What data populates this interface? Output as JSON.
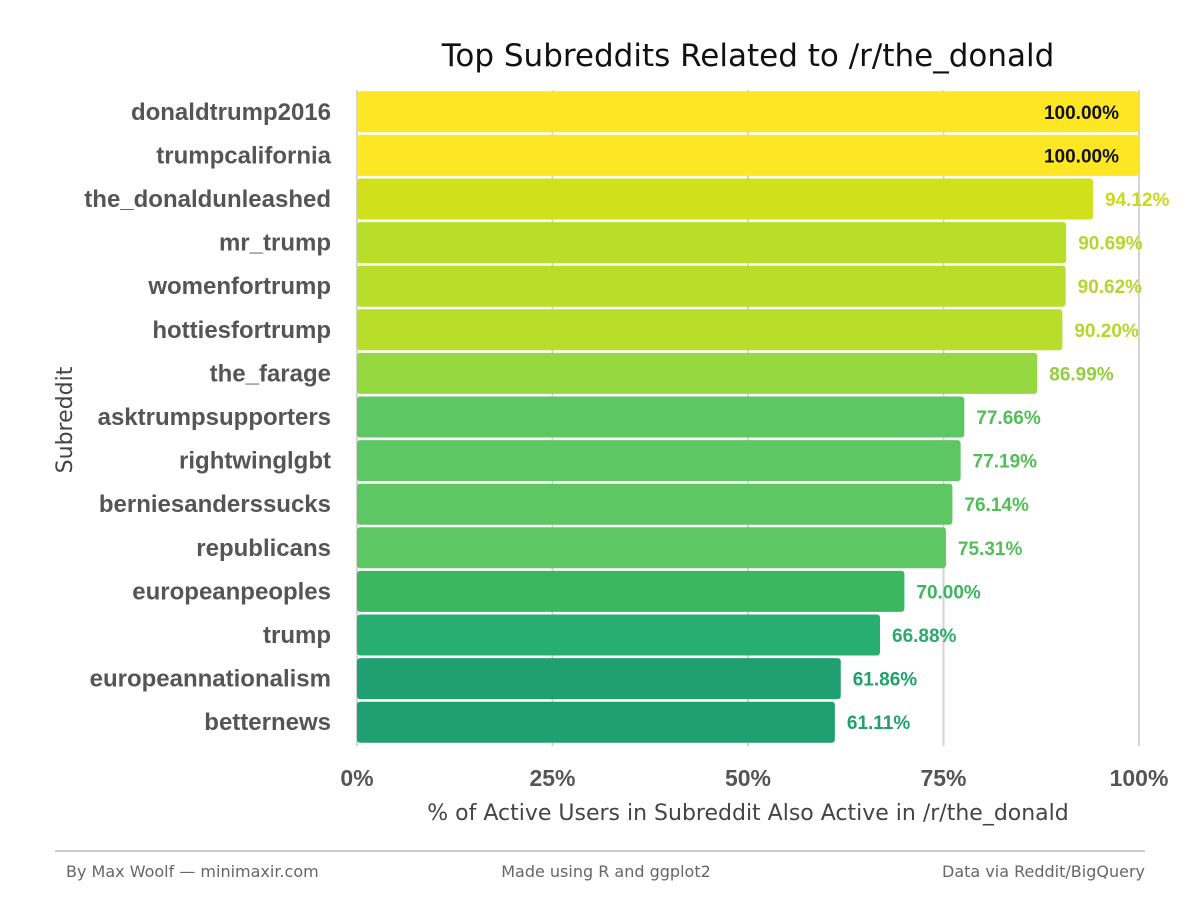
{
  "chart_data": {
    "type": "bar",
    "orientation": "horizontal",
    "title": "Top Subreddits Related to /r/the_donald",
    "xlabel": "% of Active Users in Subreddit Also Active in /r/the_donald",
    "ylabel": "Subreddit",
    "xlim": [
      0,
      100
    ],
    "x_ticks": [
      0,
      25,
      50,
      75,
      100
    ],
    "x_tick_labels": [
      "0%",
      "25%",
      "50%",
      "75%",
      "100%"
    ],
    "grid": "vertical major gridlines",
    "legend": "none",
    "categories": [
      "donaldtrump2016",
      "trumpcalifornia",
      "the_donaldunleashed",
      "mr_trump",
      "womenfortrump",
      "hottiesfortrump",
      "the_farage",
      "asktrumpsupporters",
      "rightwinglgbt",
      "berniesanderssucks",
      "republicans",
      "europeanpeoples",
      "trump",
      "europeannationalism",
      "betternews"
    ],
    "values": [
      100.0,
      100.0,
      94.12,
      90.69,
      90.62,
      90.2,
      86.99,
      77.66,
      77.19,
      76.14,
      75.31,
      70.0,
      66.88,
      61.86,
      61.11
    ],
    "value_labels": [
      "100.00%",
      "100.00%",
      "94.12%",
      "90.69%",
      "90.62%",
      "90.20%",
      "86.99%",
      "77.66%",
      "77.19%",
      "76.14%",
      "75.31%",
      "70.00%",
      "66.88%",
      "61.86%",
      "61.11%"
    ],
    "bar_colors": [
      "#FDE725",
      "#FDE725",
      "#D0E11C",
      "#B8DE29",
      "#B8DE29",
      "#B8DE29",
      "#95D840",
      "#5DC863",
      "#5DC863",
      "#5DC863",
      "#5DC863",
      "#3BB761",
      "#29AE72",
      "#20A070",
      "#20A070"
    ],
    "label_colors": [
      "#111111",
      "#111111",
      "#C9D91C",
      "#B5D62A",
      "#B5D62A",
      "#B5D62A",
      "#93CE3C",
      "#52BE58",
      "#52BE58",
      "#52BE58",
      "#52BE58",
      "#3CB55F",
      "#2BAA6C",
      "#21A06A",
      "#21A06A"
    ]
  },
  "footer": {
    "left": "By Max Woolf — minimaxir.com",
    "center": "Made using R and ggplot2",
    "right": "Data via Reddit/BigQuery"
  }
}
